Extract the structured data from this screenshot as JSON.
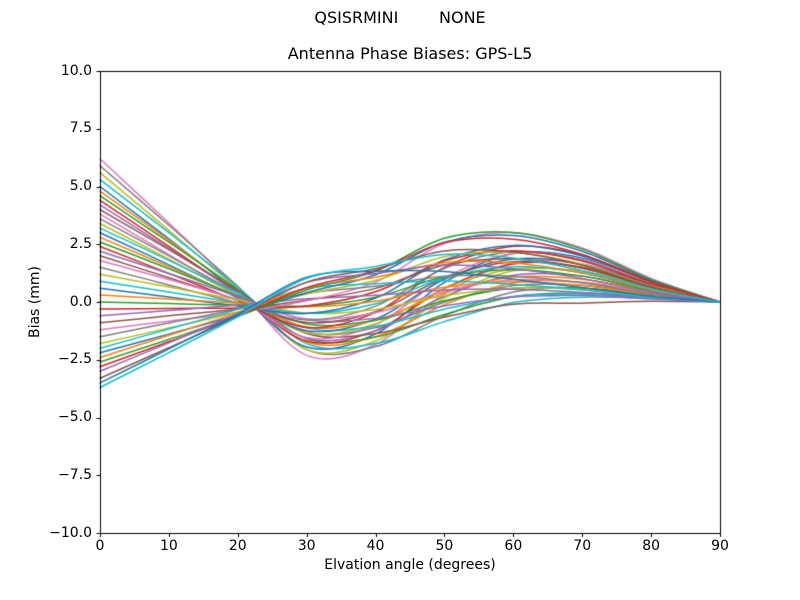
{
  "suptitle": "QSISRMINI        NONE",
  "chart_data": {
    "type": "line",
    "title": "Antenna Phase Biases: GPS-L5",
    "xlabel": "Elvation angle (degrees)",
    "ylabel": "Bias (mm)",
    "xlim": [
      0,
      90
    ],
    "ylim": [
      -10.0,
      10.0
    ],
    "grid": false,
    "legend": "none",
    "axis_color": "#000000",
    "xticks": [
      0,
      10,
      20,
      30,
      40,
      50,
      60,
      70,
      80,
      90
    ],
    "xtick_labels": [
      "0",
      "10",
      "20",
      "30",
      "40",
      "50",
      "60",
      "70",
      "80",
      "90"
    ],
    "yticks": [
      10.0,
      7.5,
      5.0,
      2.5,
      0.0,
      -2.5,
      -5.0,
      -7.5,
      -10.0
    ],
    "ytick_labels": [
      "10.0",
      "7.5",
      "5.0",
      "2.5",
      "0.0",
      "−2.5",
      "−5.0",
      "−7.5",
      "−10.0"
    ],
    "x": [
      0,
      10,
      20,
      30,
      40,
      50,
      60,
      70,
      80,
      90
    ],
    "series": [
      {
        "color": "#e377c2",
        "y": [
          6.2,
          3.42,
          0.59,
          -2.31,
          -1.84,
          0.35,
          1.7,
          1.64,
          0.77,
          0
        ]
      },
      {
        "color": "#7f7f7f",
        "y": [
          5.9,
          3.32,
          0.68,
          -2.06,
          -1.93,
          -0.6,
          0.43,
          0.6,
          0.32,
          0
        ]
      },
      {
        "color": "#bcbd22",
        "y": [
          5.6,
          3.1,
          0.55,
          -2.06,
          -1.69,
          0.17,
          1.35,
          1.33,
          0.63,
          0
        ]
      },
      {
        "color": "#17becf",
        "y": [
          5.3,
          3.0,
          0.65,
          -1.8,
          -1.8,
          -0.85,
          -0.02,
          0.21,
          0.14,
          0
        ]
      },
      {
        "color": "#1f77b4",
        "y": [
          5.0,
          2.73,
          0.4,
          -1.95,
          -1.38,
          0.85,
          2.1,
          1.9,
          0.88,
          0
        ]
      },
      {
        "color": "#ff7f0e",
        "y": [
          4.8,
          2.68,
          0.5,
          -1.73,
          -1.5,
          -0.12,
          0.82,
          0.86,
          0.42,
          0
        ]
      },
      {
        "color": "#2ca02c",
        "y": [
          4.6,
          2.59,
          0.54,
          -1.59,
          -1.52,
          -0.54,
          0.23,
          0.39,
          0.21,
          0
        ]
      },
      {
        "color": "#d62728",
        "y": [
          4.4,
          2.41,
          0.37,
          -1.69,
          -1.24,
          0.59,
          1.65,
          1.51,
          0.7,
          0
        ]
      },
      {
        "color": "#9467bd",
        "y": [
          4.2,
          2.32,
          0.4,
          -1.57,
          -1.25,
          0.25,
          1.16,
          1.12,
          0.53,
          0
        ]
      },
      {
        "color": "#8c564b",
        "y": [
          4.0,
          2.27,
          0.49,
          -1.36,
          -1.36,
          -0.65,
          -0.1,
          -0.05,
          0.03,
          0
        ]
      },
      {
        "color": "#e377c2",
        "y": [
          3.8,
          2.05,
          0.25,
          -1.54,
          -0.97,
          1.04,
          2.1,
          1.84,
          0.84,
          0
        ]
      },
      {
        "color": "#7f7f7f",
        "y": [
          3.6,
          2.0,
          0.37,
          -1.31,
          -1.11,
          -0.01,
          0.71,
          0.73,
          0.35,
          0
        ]
      },
      {
        "color": "#bcbd22",
        "y": [
          3.4,
          1.85,
          0.27,
          -1.33,
          -0.94,
          0.58,
          1.43,
          1.29,
          0.6,
          0
        ]
      },
      {
        "color": "#17becf",
        "y": [
          3.2,
          1.8,
          0.37,
          -1.12,
          -1.05,
          -0.31,
          0.24,
          0.34,
          0.18,
          0
        ]
      },
      {
        "color": "#1f77b4",
        "y": [
          3.0,
          1.61,
          0.18,
          -1.24,
          -0.74,
          0.98,
          1.86,
          1.62,
          0.74,
          0
        ]
      },
      {
        "color": "#ff7f0e",
        "y": [
          2.8,
          1.53,
          0.23,
          -1.08,
          -0.79,
          0.4,
          1.08,
          0.98,
          0.46,
          0
        ]
      },
      {
        "color": "#2ca02c",
        "y": [
          2.6,
          1.44,
          0.26,
          -0.95,
          -0.79,
          0.05,
          0.59,
          0.59,
          0.28,
          0
        ]
      },
      {
        "color": "#d62728",
        "y": [
          2.4,
          1.24,
          0.05,
          -1.1,
          -0.45,
          1.5,
          2.41,
          2.03,
          0.91,
          0
        ]
      },
      {
        "color": "#9467bd",
        "y": [
          2.2,
          1.23,
          0.25,
          -0.77,
          -0.71,
          -0.17,
          0.22,
          0.28,
          0.14,
          0
        ]
      },
      {
        "color": "#8c564b",
        "y": [
          2.0,
          1.05,
          0.07,
          -0.89,
          -0.42,
          1.04,
          1.74,
          1.48,
          0.67,
          0
        ]
      },
      {
        "color": "#e377c2",
        "y": [
          1.8,
          0.97,
          0.12,
          -0.73,
          -0.47,
          0.46,
          0.96,
          0.84,
          0.39,
          0
        ]
      },
      {
        "color": "#7f7f7f",
        "y": [
          1.5,
          0.74,
          -0.04,
          -0.77,
          -0.18,
          1.46,
          2.18,
          1.81,
          0.81,
          0
        ]
      },
      {
        "color": "#bcbd22",
        "y": [
          1.2,
          0.65,
          0.09,
          -0.48,
          -0.32,
          0.28,
          0.6,
          0.54,
          0.25,
          0
        ]
      },
      {
        "color": "#17becf",
        "y": [
          0.9,
          0.43,
          -0.04,
          -0.49,
          -0.08,
          1.05,
          1.53,
          1.26,
          0.56,
          0
        ]
      },
      {
        "color": "#1f77b4",
        "y": [
          0.6,
          0.22,
          -0.17,
          -0.5,
          0.17,
          1.82,
          2.45,
          1.99,
          0.88,
          0
        ]
      },
      {
        "color": "#ff7f0e",
        "y": [
          0.3,
          0.13,
          -0.05,
          -0.21,
          0.03,
          0.64,
          0.88,
          0.71,
          0.32,
          0
        ]
      },
      {
        "color": "#2ca02c",
        "y": [
          0.0,
          -0.07,
          -0.14,
          -0.17,
          0.21,
          1.09,
          1.4,
          1.12,
          0.49,
          0
        ]
      },
      {
        "color": "#d62728",
        "y": [
          -0.3,
          -0.28,
          -0.26,
          -0.17,
          0.44,
          1.78,
          2.22,
          1.77,
          0.77,
          0
        ]
      },
      {
        "color": "#9467bd",
        "y": [
          -0.6,
          -0.37,
          -0.13,
          0.14,
          0.29,
          0.52,
          0.55,
          0.41,
          0.18,
          0
        ]
      },
      {
        "color": "#8c564b",
        "y": [
          -0.9,
          -0.6,
          -0.3,
          0.08,
          0.59,
          1.6,
          1.87,
          1.46,
          0.63,
          0
        ]
      },
      {
        "color": "#e377c2",
        "y": [
          -1.2,
          -0.83,
          -0.45,
          0.05,
          0.86,
          2.53,
          3.0,
          2.34,
          1.02,
          0
        ]
      },
      {
        "color": "#7f7f7f",
        "y": [
          -1.5,
          -0.91,
          -0.3,
          0.38,
          0.68,
          1.11,
          1.12,
          0.83,
          0.35,
          0
        ]
      },
      {
        "color": "#bcbd22",
        "y": [
          -1.8,
          -1.13,
          -0.43,
          0.35,
          0.93,
          1.96,
          2.14,
          1.64,
          0.7,
          0
        ]
      },
      {
        "color": "#17becf",
        "y": [
          -2.0,
          -1.17,
          -0.32,
          0.59,
          0.79,
          0.91,
          0.76,
          0.52,
          0.21,
          0
        ]
      },
      {
        "color": "#1f77b4",
        "y": [
          -2.2,
          -1.39,
          -0.56,
          0.4,
          1.18,
          2.59,
          2.88,
          2.2,
          0.95,
          0
        ]
      },
      {
        "color": "#ff7f0e",
        "y": [
          -2.4,
          -1.44,
          -0.46,
          0.61,
          1.07,
          1.7,
          1.69,
          1.25,
          0.53,
          0
        ]
      },
      {
        "color": "#2ca02c",
        "y": [
          -2.6,
          -1.62,
          -0.62,
          0.52,
          1.33,
          2.76,
          3.01,
          2.29,
          0.98,
          0
        ]
      },
      {
        "color": "#d62728",
        "y": [
          -2.8,
          -1.72,
          -0.61,
          0.62,
          1.36,
          2.57,
          2.72,
          2.06,
          0.88,
          0
        ]
      },
      {
        "color": "#9467bd",
        "y": [
          -3.0,
          -1.77,
          -0.51,
          0.85,
          1.23,
          1.6,
          1.44,
          1.02,
          0.42,
          0
        ]
      },
      {
        "color": "#8c564b",
        "y": [
          -3.3,
          -1.98,
          -0.62,
          0.86,
          1.44,
          2.21,
          2.16,
          1.59,
          0.67,
          0
        ]
      },
      {
        "color": "#1f77b4",
        "y": [
          -3.5,
          -2.03,
          -0.53,
          1.07,
          1.33,
          1.32,
          0.98,
          0.63,
          0.25,
          0
        ]
      },
      {
        "color": "#17becf",
        "y": [
          -3.7,
          -2.19,
          -0.64,
          1.03,
          1.54,
          2.06,
          1.9,
          1.35,
          0.56,
          0
        ]
      }
    ]
  }
}
